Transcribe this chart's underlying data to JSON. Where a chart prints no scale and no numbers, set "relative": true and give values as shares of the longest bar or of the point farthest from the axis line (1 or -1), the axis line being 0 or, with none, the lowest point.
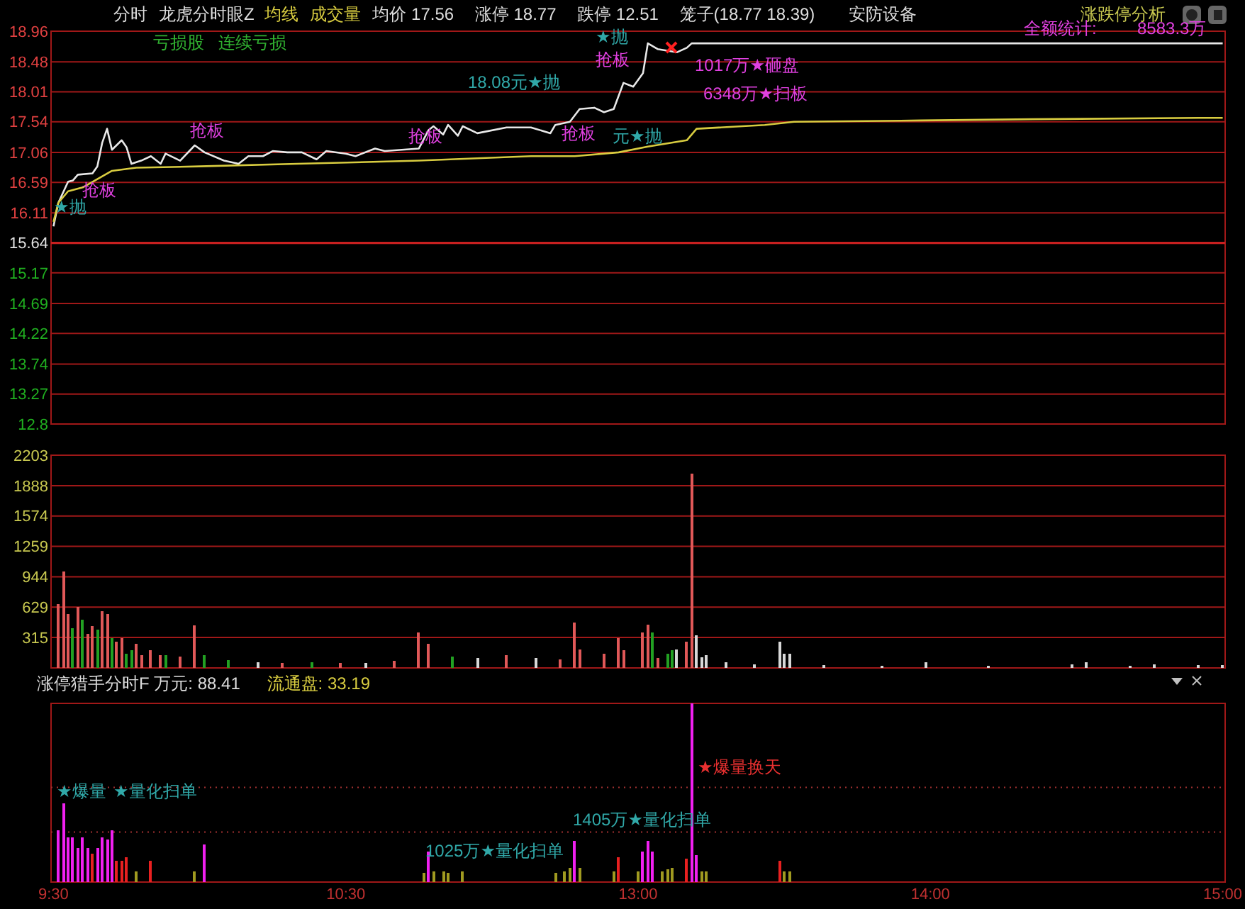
{
  "chart_data": [
    {
      "type": "line",
      "title": "分时",
      "subtitle": "龙虎分时眼Z",
      "grid": "y",
      "marker": "none",
      "line_style": "solid",
      "tick_labels": "y",
      "ylim": [
        12.8,
        18.96
      ],
      "yticks": [
        12.8,
        13.27,
        13.74,
        14.22,
        14.69,
        15.17,
        15.64,
        16.11,
        16.59,
        17.06,
        17.54,
        18.01,
        18.48,
        18.96
      ],
      "ref_lines": [
        {
          "axis": "y",
          "value": 15.64,
          "line_style": "solid",
          "color": "#c82020"
        }
      ],
      "categories": [
        null,
        null,
        null,
        null,
        null,
        null,
        null,
        null,
        null,
        null,
        null,
        null,
        null,
        null,
        null,
        null,
        null,
        null,
        null,
        null,
        null,
        null,
        null,
        null,
        null,
        null,
        null,
        null,
        null,
        null,
        null,
        null,
        null,
        null,
        null,
        null,
        null,
        null,
        null,
        null,
        null,
        null,
        null,
        null,
        null,
        null,
        null,
        null,
        null,
        null,
        null,
        null,
        null,
        null,
        null,
        null,
        null,
        null,
        null,
        null,
        null,
        null,
        null,
        null,
        null,
        null,
        null,
        null,
        null,
        null,
        null,
        null,
        null,
        null,
        null,
        null,
        null,
        null,
        null,
        null,
        null,
        null,
        null,
        null,
        null,
        null,
        null,
        null,
        null,
        null,
        null,
        null,
        null,
        null,
        null,
        null,
        null,
        null,
        null,
        null,
        null,
        null,
        null,
        null,
        null,
        null,
        null,
        null,
        null,
        null,
        null,
        null,
        null,
        null,
        null,
        null,
        null,
        null,
        null,
        null,
        null,
        null,
        null,
        null,
        null,
        null,
        null,
        null,
        null,
        null,
        null,
        null,
        null,
        null,
        null,
        null,
        null,
        null,
        null,
        null,
        null,
        null,
        null,
        null,
        null,
        null,
        null,
        null,
        null,
        null,
        null,
        null,
        null,
        null,
        null,
        null,
        null,
        null,
        null,
        null,
        null,
        null,
        null,
        null,
        null,
        null,
        null,
        null,
        null,
        null,
        null,
        null,
        null,
        null,
        null,
        null,
        null,
        null,
        null,
        null,
        null,
        null,
        null,
        null,
        null,
        null,
        null,
        null,
        null,
        null,
        null,
        null,
        null,
        null,
        null,
        null,
        null,
        null,
        null,
        null,
        null,
        null,
        null,
        null,
        null,
        null,
        null,
        null,
        null,
        null,
        null,
        null,
        null,
        null,
        null,
        null,
        null,
        null,
        null,
        null,
        null,
        null,
        null,
        null,
        null,
        null,
        null,
        null,
        null,
        null,
        null,
        null,
        null,
        null,
        null,
        null,
        null,
        null,
        null,
        null,
        null
      ],
      "series": [
        {
          "color": "#e8e8e8",
          "values": [
            15.9,
            16.27,
            null,
            16.6,
            16.62,
            16.71,
            null,
            null,
            16.73,
            16.84,
            17.21,
            17.43,
            17.1,
            null,
            17.25,
            17.14,
            16.88,
            null,
            16.93,
            null,
            17.0,
            null,
            16.88,
            17.04,
            null,
            null,
            16.93,
            null,
            null,
            17.17,
            null,
            17.06,
            null,
            null,
            null,
            16.93,
            null,
            null,
            16.88,
            null,
            17.0,
            null,
            null,
            17.0,
            null,
            17.08,
            null,
            null,
            17.06,
            null,
            null,
            17.06,
            null,
            null,
            16.95,
            null,
            17.08,
            null,
            null,
            null,
            17.04,
            null,
            17.0,
            null,
            null,
            null,
            17.12,
            null,
            17.08,
            null,
            null,
            null,
            null,
            null,
            null,
            17.12,
            null,
            17.41,
            17.47,
            null,
            17.34,
            17.49,
            null,
            17.32,
            17.47,
            null,
            null,
            17.36,
            null,
            null,
            null,
            null,
            null,
            17.45,
            null,
            null,
            null,
            null,
            17.45,
            null,
            null,
            null,
            17.36,
            17.49,
            null,
            null,
            17.54,
            null,
            17.74,
            null,
            null,
            17.76,
            null,
            17.69,
            null,
            17.74,
            null,
            18.15,
            null,
            18.09,
            null,
            18.3,
            18.77,
            null,
            18.68,
            null,
            null,
            null,
            18.63,
            null,
            18.7,
            18.77,
            null,
            null,
            null,
            null,
            null,
            null,
            null,
            null,
            null,
            null,
            null,
            null,
            null,
            null,
            null,
            null,
            null,
            null,
            18.77,
            null,
            null,
            null,
            null,
            null,
            null,
            null,
            null,
            null,
            null,
            null,
            null,
            null,
            null,
            null,
            null,
            null,
            null,
            null,
            18.77,
            null,
            null,
            null,
            null,
            null,
            null,
            null,
            null,
            null,
            null,
            null,
            null,
            null,
            null,
            null,
            null,
            null,
            null,
            null,
            18.77,
            null,
            null,
            null,
            null,
            null,
            null,
            null,
            null,
            null,
            null,
            null,
            null,
            null,
            null,
            null,
            null,
            null,
            null,
            null,
            18.77,
            null,
            null,
            null,
            null,
            null,
            null,
            null,
            null,
            null,
            null,
            null,
            null,
            null,
            null,
            null,
            null,
            null,
            null,
            null,
            18.77,
            null,
            null,
            null,
            null,
            null,
            null,
            null,
            null,
            null,
            18.77
          ]
        },
        {
          "name": "均线",
          "color": "#d8cc40",
          "values": [
            15.97,
            16.27,
            null,
            16.45,
            null,
            null,
            16.51,
            null,
            null,
            null,
            null,
            null,
            16.77,
            null,
            null,
            null,
            null,
            16.82,
            null,
            null,
            null,
            null,
            null,
            null,
            null,
            null,
            null,
            null,
            null,
            null,
            16.84,
            null,
            null,
            null,
            null,
            null,
            null,
            null,
            null,
            null,
            null,
            null,
            null,
            null,
            null,
            null,
            null,
            null,
            null,
            null,
            16.88,
            null,
            null,
            null,
            null,
            null,
            null,
            null,
            null,
            null,
            null,
            null,
            null,
            null,
            null,
            null,
            null,
            null,
            null,
            null,
            null,
            null,
            null,
            null,
            null,
            16.93,
            null,
            null,
            null,
            null,
            null,
            null,
            null,
            null,
            null,
            null,
            null,
            null,
            null,
            null,
            null,
            null,
            null,
            null,
            null,
            null,
            null,
            null,
            17.0,
            null,
            null,
            null,
            null,
            null,
            null,
            null,
            null,
            17.0,
            null,
            null,
            null,
            null,
            null,
            null,
            null,
            null,
            17.06,
            null,
            null,
            null,
            null,
            null,
            17.15,
            null,
            null,
            null,
            null,
            null,
            null,
            null,
            17.25,
            null,
            17.43,
            null,
            null,
            null,
            null,
            null,
            null,
            null,
            null,
            null,
            null,
            null,
            null,
            null,
            17.49,
            null,
            null,
            null,
            null,
            null,
            17.54,
            null,
            null,
            null,
            null,
            null,
            null,
            null,
            null,
            null,
            null,
            null,
            null,
            null,
            null,
            null,
            null,
            null,
            null,
            null,
            null,
            null,
            null,
            null,
            null,
            null,
            17.56,
            null,
            null,
            null,
            null,
            null,
            null,
            null,
            null,
            null,
            null,
            null,
            null,
            null,
            null,
            null,
            null,
            null,
            null,
            null,
            null,
            null,
            null,
            17.58,
            null,
            null,
            null,
            null,
            null,
            null,
            null,
            null,
            null,
            null,
            null,
            null,
            null,
            null,
            null,
            null,
            null,
            null,
            null,
            null,
            null,
            null,
            null,
            null,
            null,
            null,
            null,
            null,
            null,
            null,
            null,
            null,
            null,
            17.6,
            null,
            null,
            null,
            null,
            17.6
          ]
        }
      ],
      "annotations": [
        "成交量",
        "均价 17.56",
        "涨停 18.77",
        "跌停 12.51",
        "笼子(18.77 18.39)",
        "安防设备",
        "涨跌停分析",
        "亏损股",
        "连续亏损",
        "18.08元★抛",
        "6348万★扫板",
        "抢板",
        "★抛",
        "1017万★砸盘",
        "全额统计:",
        "8583.3万",
        "★抛",
        "抢板",
        "抢板",
        "抢板",
        "抢板",
        "元★抛"
      ]
    },
    {
      "type": "bar",
      "grid": "y",
      "tick_labels": "y",
      "ylim": [
        0,
        2203
      ],
      "yticks": [
        315,
        629,
        944,
        1259,
        1574,
        1888,
        2203
      ],
      "categories": [
        null,
        null,
        null,
        null,
        null,
        null,
        null,
        null,
        null,
        null,
        null,
        null,
        null,
        null,
        null,
        null,
        null,
        null,
        null,
        null,
        null,
        null,
        null,
        null,
        null,
        null,
        null,
        null,
        null,
        null,
        null,
        null,
        null,
        null,
        null,
        null,
        null,
        null,
        null,
        null,
        null,
        null,
        null,
        null,
        null,
        null,
        null,
        null,
        null,
        null,
        null,
        null,
        null,
        null,
        null,
        null,
        null,
        null,
        null,
        null,
        null,
        null,
        null,
        null,
        null,
        null,
        null,
        null,
        null,
        null,
        null,
        null,
        null,
        null,
        null,
        null,
        null,
        null,
        null,
        null,
        null,
        null,
        null,
        null,
        null,
        null,
        null,
        null,
        null,
        null,
        null,
        null,
        null,
        null,
        null,
        null,
        null,
        null,
        null,
        null,
        null,
        null,
        null,
        null,
        null,
        null,
        null,
        null,
        null,
        null,
        null,
        null,
        null,
        null,
        null,
        null,
        null,
        null,
        null,
        null,
        null,
        null,
        null,
        null,
        null,
        null,
        null,
        null,
        null,
        null,
        null,
        null,
        null,
        null,
        null,
        null,
        null,
        null,
        null,
        null,
        null,
        null,
        null,
        null,
        null,
        null,
        null,
        null,
        null,
        null,
        null,
        null,
        null,
        null,
        null,
        null,
        null,
        null,
        null,
        null,
        null,
        null,
        null,
        null,
        null,
        null,
        null,
        null,
        null,
        null,
        null,
        null,
        null,
        null,
        null,
        null,
        null,
        null,
        null,
        null,
        null,
        null,
        null,
        null,
        null,
        null,
        null,
        null,
        null,
        null,
        null,
        null,
        null,
        null,
        null,
        null,
        null,
        null,
        null,
        null,
        null,
        null,
        null,
        null,
        null,
        null,
        null,
        null,
        null,
        null,
        null,
        null,
        null,
        null,
        null,
        null,
        null,
        null,
        null,
        null,
        null,
        null,
        null,
        null,
        null,
        null,
        null,
        null,
        null,
        null,
        null,
        null,
        null,
        null,
        null,
        null,
        null,
        null,
        null,
        null,
        null
      ],
      "values": [
        null,
        660,
        1000,
        560,
        410,
        630,
        500,
        350,
        430,
        400,
        590,
        560,
        310,
        270,
        310,
        150,
        180,
        250,
        130,
        null,
        180,
        null,
        130,
        130,
        null,
        null,
        120,
        null,
        null,
        440,
        null,
        130,
        null,
        null,
        null,
        null,
        80,
        null,
        null,
        null,
        null,
        null,
        60,
        null,
        null,
        null,
        null,
        50,
        null,
        null,
        null,
        null,
        null,
        60,
        null,
        null,
        null,
        null,
        null,
        50,
        null,
        null,
        null,
        null,
        50,
        null,
        null,
        null,
        null,
        null,
        70,
        null,
        null,
        null,
        null,
        370,
        null,
        250,
        null,
        null,
        null,
        null,
        120,
        null,
        null,
        null,
        null,
        100,
        null,
        null,
        null,
        null,
        null,
        130,
        null,
        null,
        null,
        null,
        null,
        100,
        null,
        null,
        null,
        null,
        90,
        null,
        null,
        470,
        190,
        null,
        null,
        null,
        null,
        150,
        null,
        null,
        310,
        180,
        null,
        null,
        null,
        370,
        450,
        370,
        100,
        null,
        150,
        180,
        190,
        null,
        270,
        2010,
        340,
        110,
        130,
        null,
        null,
        null,
        60,
        null,
        null,
        null,
        null,
        null,
        40,
        null,
        null,
        null,
        null,
        270,
        150,
        150,
        null,
        null,
        null,
        null,
        null,
        null,
        30,
        null,
        null,
        null,
        null,
        null,
        null,
        null,
        null,
        null,
        null,
        null,
        25,
        null,
        null,
        null,
        null,
        null,
        null,
        null,
        null,
        60,
        null,
        null,
        null,
        null,
        null,
        null,
        null,
        null,
        null,
        null,
        null,
        null,
        25,
        null,
        null,
        null,
        null,
        null,
        null,
        null,
        null,
        null,
        null,
        null,
        null,
        null,
        null,
        null,
        null,
        40,
        null,
        null,
        60,
        null,
        null,
        null,
        null,
        null,
        null,
        null,
        null,
        25,
        null,
        null,
        null,
        null,
        40,
        null,
        null,
        null,
        null,
        null,
        null,
        null,
        null,
        30,
        null,
        null,
        null,
        null,
        30
      ],
      "colors": [
        null,
        "#e05858",
        "#e05858",
        "#e05858",
        "#22a022",
        "#e05858",
        "#22a022",
        "#e05858",
        "#e05858",
        "#22a022",
        "#e05858",
        "#e05858",
        "#22a022",
        "#e05858",
        "#e05858",
        "#22a022",
        "#22a022",
        "#e05858",
        "#e05858",
        null,
        "#e05858",
        null,
        "#e05858",
        "#22a022",
        null,
        null,
        "#e05858",
        null,
        null,
        "#e05858",
        null,
        "#22a022",
        null,
        null,
        null,
        null,
        "#22a022",
        null,
        null,
        null,
        null,
        null,
        "#d8d8d8",
        null,
        null,
        null,
        null,
        "#e05858",
        null,
        null,
        null,
        null,
        null,
        "#22a022",
        null,
        null,
        null,
        null,
        null,
        "#e05858",
        null,
        null,
        null,
        null,
        "#d8d8d8",
        null,
        null,
        null,
        null,
        null,
        "#e05858",
        null,
        null,
        null,
        null,
        "#e05858",
        null,
        "#e05858",
        null,
        null,
        null,
        null,
        "#22a022",
        null,
        null,
        null,
        null,
        "#d8d8d8",
        null,
        null,
        null,
        null,
        null,
        "#e05858",
        null,
        null,
        null,
        null,
        null,
        "#d8d8d8",
        null,
        null,
        null,
        null,
        "#e05858",
        null,
        null,
        "#e05858",
        "#e05858",
        null,
        null,
        null,
        null,
        "#e05858",
        null,
        null,
        "#e05858",
        "#e05858",
        null,
        null,
        null,
        "#e05858",
        "#e05858",
        "#22a022",
        "#e05858",
        null,
        "#22a022",
        "#22a022",
        "#d8d8d8",
        null,
        "#e05858",
        "#e05858",
        "#d8d8d8",
        "#d8d8d8",
        "#d8d8d8",
        null,
        null,
        null,
        "#d8d8d8",
        null,
        null,
        null,
        null,
        null,
        "#d8d8d8",
        null,
        null,
        null,
        null,
        "#d8d8d8",
        "#d8d8d8",
        "#d8d8d8",
        null,
        null,
        null,
        null,
        null,
        null,
        "#d8d8d8",
        null,
        null,
        null,
        null,
        null,
        null,
        null,
        null,
        null,
        null,
        null,
        "#d8d8d8",
        null,
        null,
        null,
        null,
        null,
        null,
        null,
        null,
        "#d8d8d8",
        null,
        null,
        null,
        null,
        null,
        null,
        null,
        null,
        null,
        null,
        null,
        null,
        "#d8d8d8",
        null,
        null,
        null,
        null,
        null,
        null,
        null,
        null,
        null,
        null,
        null,
        null,
        null,
        null,
        null,
        null,
        "#d8d8d8",
        null,
        null,
        "#d8d8d8",
        null,
        null,
        null,
        null,
        null,
        null,
        null,
        null,
        "#d8d8d8",
        null,
        null,
        null,
        null,
        "#d8d8d8",
        null,
        null,
        null,
        null,
        null,
        null,
        null,
        null,
        "#d8d8d8",
        null,
        null,
        null,
        null,
        "#d8d8d8"
      ]
    },
    {
      "type": "bar",
      "relative": true,
      "title": "涨停猎手分时F 万元: 88.41",
      "subtitle": "流通盘: 33.19",
      "ref_lines": [
        {
          "axis": "y",
          "value": 0.28,
          "line_style": "dotted",
          "color": "#a03030"
        },
        {
          "axis": "y",
          "value": 0.53,
          "line_style": "dotted",
          "color": "#a03030"
        }
      ],
      "categories": [
        "9:30",
        null,
        null,
        null,
        null,
        null,
        null,
        null,
        null,
        null,
        null,
        null,
        null,
        null,
        null,
        null,
        null,
        null,
        null,
        null,
        null,
        null,
        null,
        null,
        null,
        null,
        null,
        null,
        null,
        null,
        null,
        null,
        null,
        null,
        null,
        null,
        null,
        null,
        null,
        null,
        null,
        null,
        null,
        null,
        null,
        null,
        null,
        null,
        null,
        null,
        null,
        null,
        null,
        null,
        null,
        null,
        null,
        null,
        null,
        null,
        "10:30",
        null,
        null,
        null,
        null,
        null,
        null,
        null,
        null,
        null,
        null,
        null,
        null,
        null,
        null,
        null,
        null,
        null,
        null,
        null,
        null,
        null,
        null,
        null,
        null,
        null,
        null,
        null,
        null,
        null,
        null,
        null,
        null,
        null,
        null,
        null,
        null,
        null,
        null,
        null,
        null,
        null,
        null,
        null,
        null,
        null,
        null,
        null,
        null,
        null,
        null,
        null,
        null,
        null,
        null,
        null,
        null,
        null,
        null,
        null,
        "13:00",
        null,
        null,
        null,
        null,
        null,
        null,
        null,
        null,
        null,
        null,
        null,
        null,
        null,
        null,
        null,
        null,
        null,
        null,
        null,
        null,
        null,
        null,
        null,
        null,
        null,
        null,
        null,
        null,
        null,
        null,
        null,
        null,
        null,
        null,
        null,
        null,
        null,
        null,
        null,
        null,
        null,
        null,
        null,
        null,
        null,
        null,
        null,
        null,
        null,
        null,
        null,
        null,
        null,
        null,
        null,
        null,
        null,
        null,
        null,
        "14:00",
        null,
        null,
        null,
        null,
        null,
        null,
        null,
        null,
        null,
        null,
        null,
        null,
        null,
        null,
        null,
        null,
        null,
        null,
        null,
        null,
        null,
        null,
        null,
        null,
        null,
        null,
        null,
        null,
        null,
        null,
        null,
        null,
        null,
        null,
        null,
        null,
        null,
        null,
        null,
        null,
        null,
        null,
        null,
        null,
        null,
        null,
        null,
        null,
        null,
        null,
        null,
        null,
        null,
        null,
        null,
        null,
        null,
        null,
        null,
        "15:00"
      ],
      "values": [
        null,
        0.29,
        0.44,
        0.25,
        0.25,
        0.19,
        0.25,
        0.19,
        0.16,
        0.19,
        0.25,
        0.24,
        0.29,
        0.12,
        0.12,
        0.14,
        null,
        0.06,
        null,
        null,
        0.12,
        null,
        null,
        null,
        null,
        null,
        null,
        null,
        null,
        0.06,
        null,
        0.21,
        null,
        null,
        null,
        null,
        null,
        null,
        null,
        null,
        null,
        null,
        null,
        null,
        null,
        null,
        null,
        null,
        null,
        null,
        null,
        null,
        null,
        null,
        null,
        null,
        null,
        null,
        null,
        null,
        null,
        null,
        null,
        null,
        null,
        null,
        null,
        null,
        null,
        null,
        null,
        null,
        null,
        null,
        null,
        null,
        0.05,
        0.17,
        0.06,
        null,
        0.06,
        0.05,
        null,
        null,
        0.06,
        null,
        null,
        null,
        null,
        null,
        null,
        null,
        null,
        null,
        null,
        null,
        null,
        null,
        null,
        null,
        null,
        null,
        null,
        0.05,
        null,
        0.06,
        0.08,
        0.23,
        0.08,
        null,
        null,
        null,
        null,
        null,
        null,
        0.06,
        0.14,
        null,
        null,
        null,
        0.06,
        0.17,
        0.23,
        0.17,
        null,
        0.06,
        0.07,
        0.08,
        null,
        null,
        0.13,
        1,
        0.15,
        0.06,
        0.06,
        null,
        null,
        null,
        null,
        null,
        null,
        null,
        null,
        null,
        null,
        null,
        null,
        null,
        null,
        0.12,
        0.06,
        0.06,
        null,
        null,
        null,
        null,
        null,
        null,
        null,
        null,
        null,
        null,
        null,
        null,
        null,
        null,
        null,
        null,
        null,
        null,
        null,
        null,
        null,
        null,
        null,
        null,
        null,
        null,
        null,
        null,
        null,
        null,
        null,
        null,
        null,
        null,
        null,
        null,
        null,
        null,
        null,
        null,
        null,
        null,
        null,
        null,
        null,
        null,
        null,
        null,
        null,
        null,
        null,
        null,
        null,
        null,
        null,
        null,
        null,
        null,
        null,
        null,
        null,
        null,
        null,
        null,
        null,
        null,
        null,
        null,
        null,
        null,
        null,
        null,
        null,
        null,
        null,
        null,
        null,
        null,
        null,
        null,
        null,
        null,
        null,
        null,
        null,
        null,
        null,
        null,
        null
      ],
      "colors": [
        null,
        "#f020f0",
        "#f020f0",
        "#f020f0",
        "#f020f0",
        "#f020f0",
        "#f020f0",
        "#f020f0",
        "#e82020",
        "#f020f0",
        "#f020f0",
        "#f020f0",
        "#f020f0",
        "#e82020",
        "#e82020",
        "#e82020",
        null,
        "#a09a20",
        null,
        null,
        "#e82020",
        null,
        null,
        null,
        null,
        null,
        null,
        null,
        null,
        "#a09a20",
        null,
        "#f020f0",
        null,
        null,
        null,
        null,
        null,
        null,
        null,
        null,
        null,
        null,
        null,
        null,
        null,
        null,
        null,
        null,
        null,
        null,
        null,
        null,
        null,
        null,
        null,
        null,
        null,
        null,
        null,
        null,
        null,
        null,
        null,
        null,
        null,
        null,
        null,
        null,
        null,
        null,
        null,
        null,
        null,
        null,
        null,
        null,
        "#a09a20",
        "#f020f0",
        "#a09a20",
        null,
        "#a09a20",
        "#a09a20",
        null,
        null,
        "#a09a20",
        null,
        null,
        null,
        null,
        null,
        null,
        null,
        null,
        null,
        null,
        null,
        null,
        null,
        null,
        null,
        null,
        null,
        null,
        "#a09a20",
        null,
        "#a09a20",
        "#a09a20",
        "#f020f0",
        "#a09a20",
        null,
        null,
        null,
        null,
        null,
        null,
        "#a09a20",
        "#e82020",
        null,
        null,
        null,
        "#a09a20",
        "#f020f0",
        "#f020f0",
        "#f020f0",
        null,
        "#a09a20",
        "#a09a20",
        "#a09a20",
        null,
        null,
        "#e82020",
        "#f020f0",
        "#f020f0",
        "#a09a20",
        "#a09a20",
        null,
        null,
        null,
        null,
        null,
        null,
        null,
        null,
        null,
        null,
        null,
        null,
        null,
        null,
        "#e82020",
        "#a09a20",
        "#a09a20",
        null,
        null,
        null,
        null,
        null,
        null,
        null,
        null,
        null,
        null,
        null,
        null,
        null,
        null,
        null,
        null,
        null,
        null,
        null,
        null,
        null,
        null,
        null,
        null,
        null,
        null,
        null,
        null,
        null,
        null,
        null,
        null,
        null,
        null,
        null,
        null,
        null,
        null,
        null,
        null,
        null,
        null,
        null,
        null,
        null,
        null,
        null,
        null,
        null,
        null,
        null,
        null,
        null,
        null,
        null,
        null,
        null,
        null,
        null,
        null,
        null,
        null,
        null,
        null,
        null,
        null,
        null,
        null,
        null,
        null,
        null,
        null,
        null,
        null,
        null,
        null,
        null,
        null,
        null,
        null,
        null,
        null,
        null,
        null,
        null,
        null,
        null,
        null,
        null
      ],
      "annotations": [
        "★爆量",
        "★量化扫单",
        "1025万★量化扫单",
        "1405万★量化扫单",
        "★爆量换天"
      ]
    }
  ]
}
